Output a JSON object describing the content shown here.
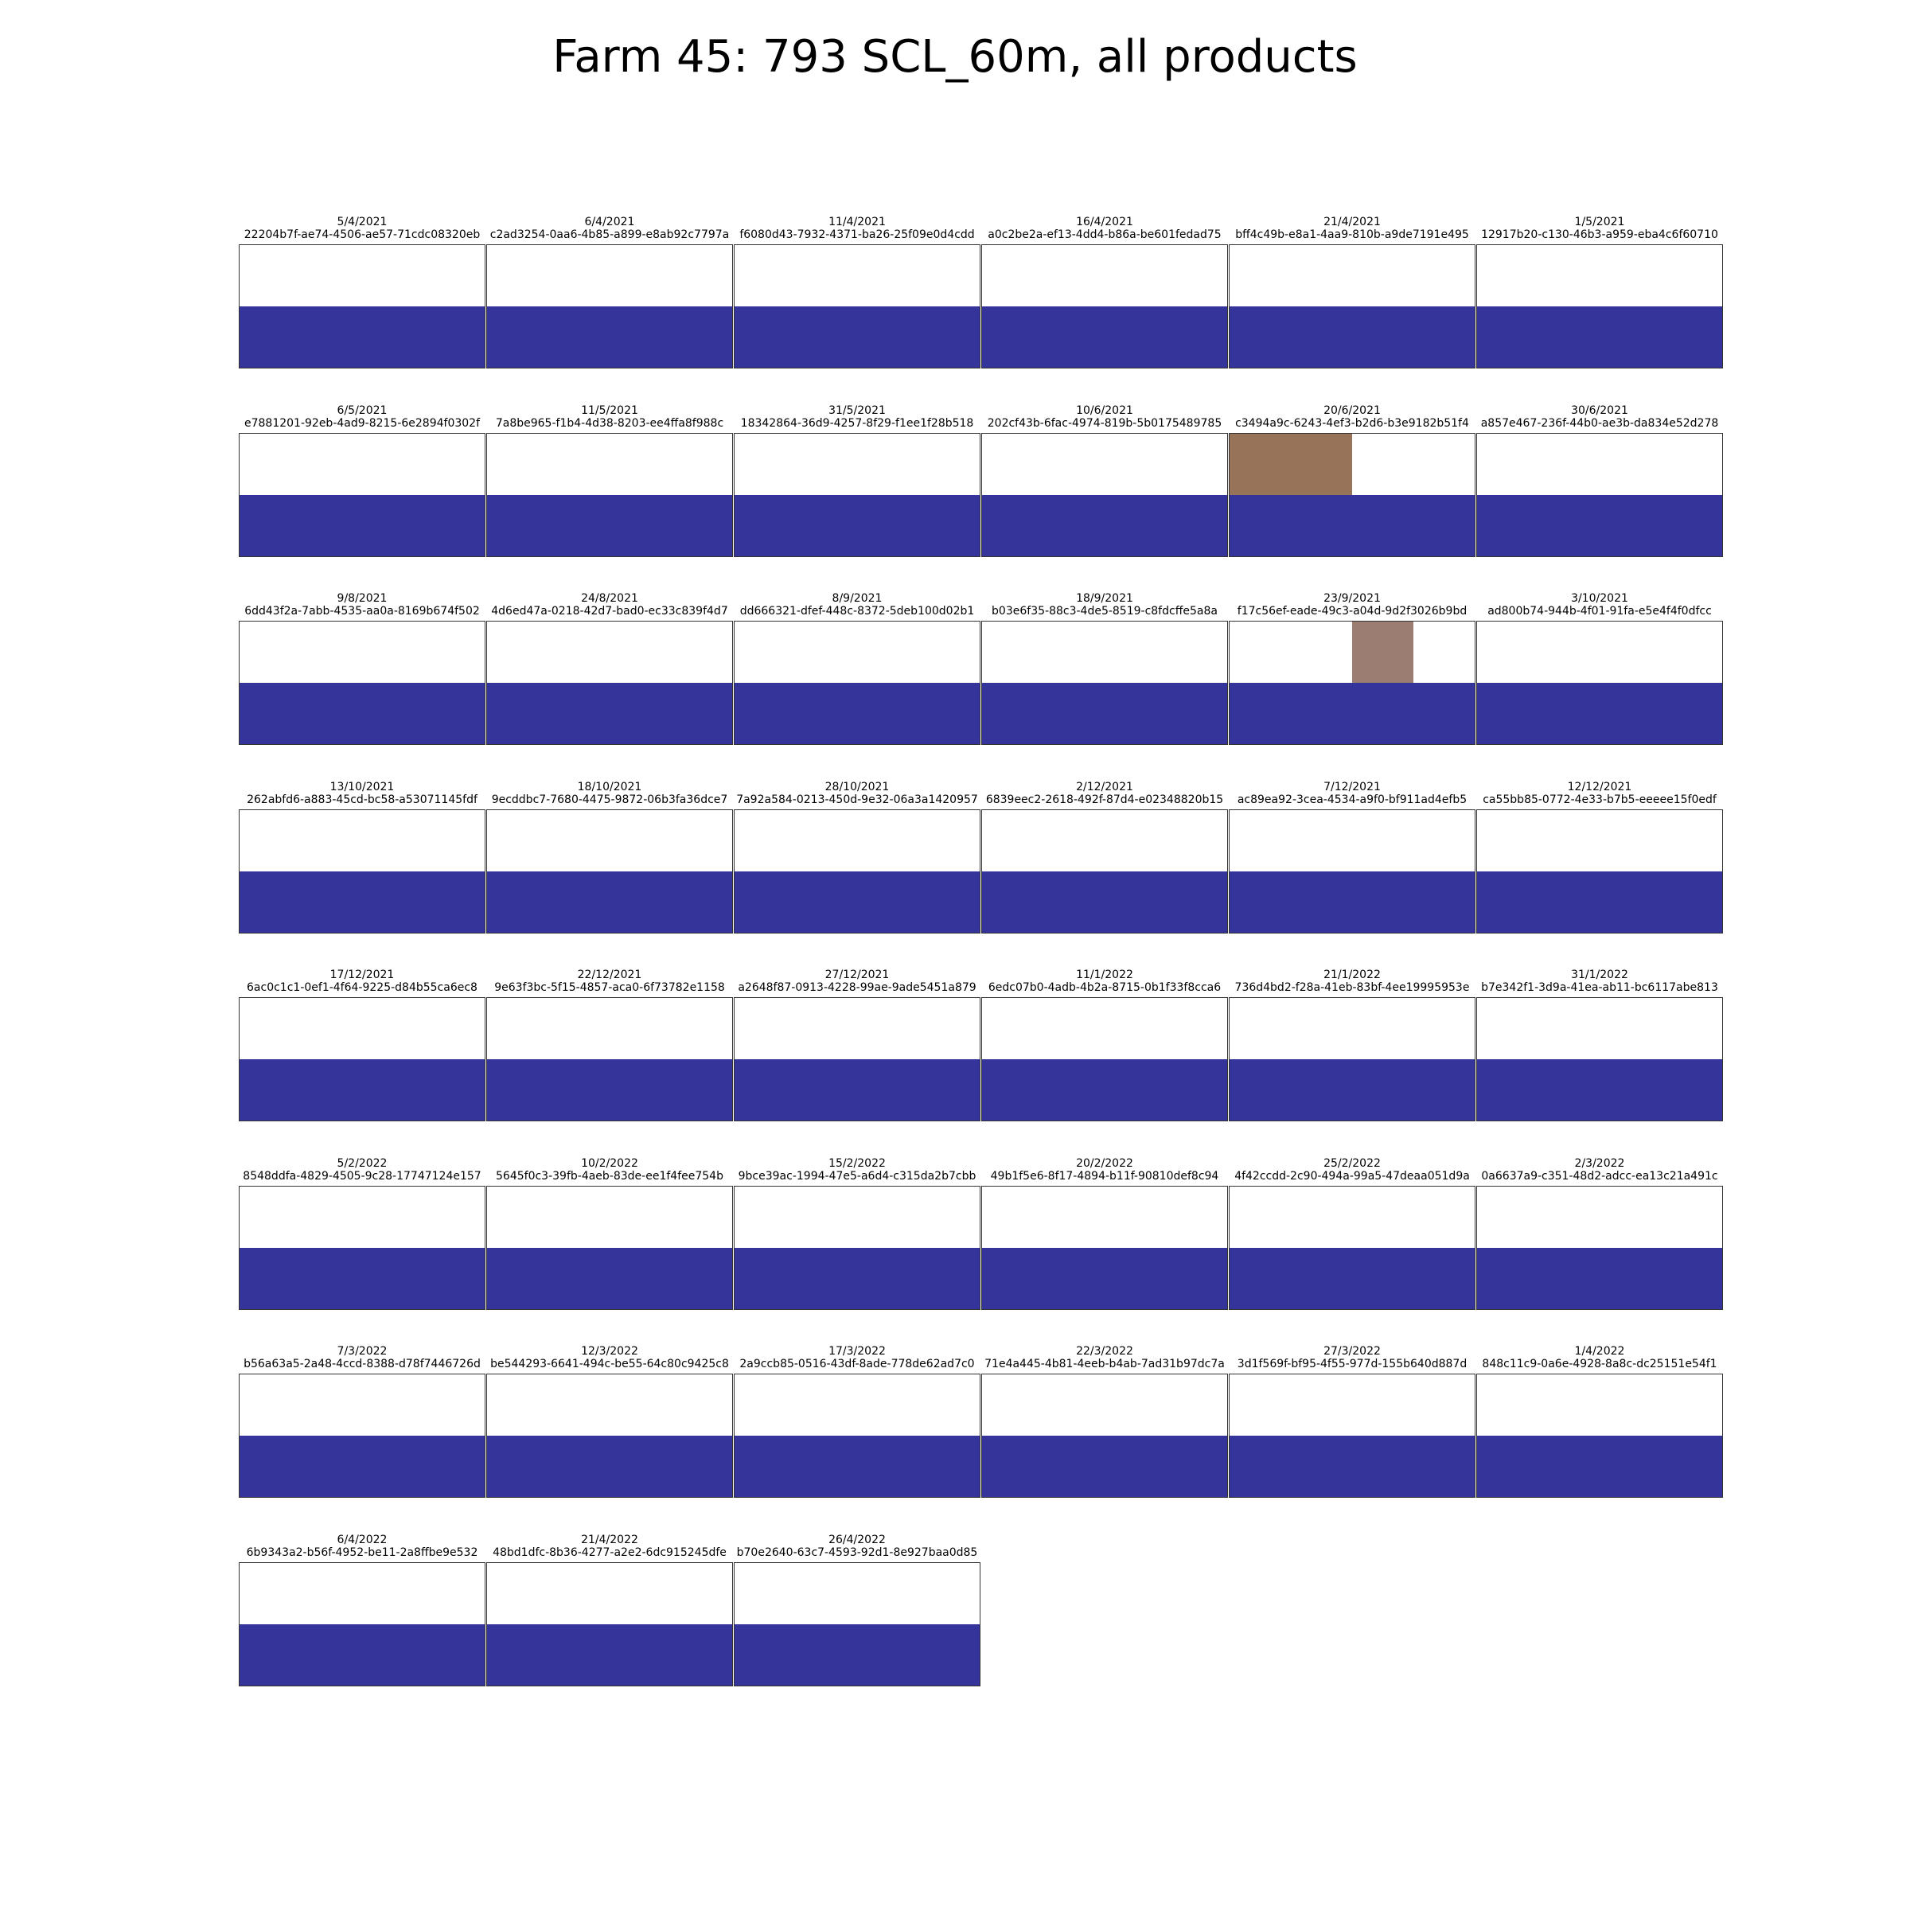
{
  "title": "Farm 45: 793 SCL_60m, all products",
  "colors": {
    "water": "#34349a",
    "bare_soil": "#967359",
    "cloud_shadow": "#9b7d72",
    "empty": "#ffffff",
    "border": "#333333"
  },
  "chart_data": {
    "type": "heatmap",
    "title": "Farm 45: 793 SCL_60m, all products",
    "grid": {
      "rows": 2,
      "cols": 2
    },
    "panels": [
      {
        "date": "5/4/2021",
        "id": "22204b7f-ae74-4506-ae57-71cdc08320eb",
        "cells": [
          "empty",
          "empty",
          "water",
          "water"
        ]
      },
      {
        "date": "6/4/2021",
        "id": "c2ad3254-0aa6-4b85-a899-e8ab92c7797a",
        "cells": [
          "empty",
          "empty",
          "water",
          "water"
        ]
      },
      {
        "date": "11/4/2021",
        "id": "f6080d43-7932-4371-ba26-25f09e0d4cdd",
        "cells": [
          "empty",
          "empty",
          "water",
          "water"
        ]
      },
      {
        "date": "16/4/2021",
        "id": "a0c2be2a-ef13-4dd4-b86a-be601fedad75",
        "cells": [
          "empty",
          "empty",
          "water",
          "water"
        ]
      },
      {
        "date": "21/4/2021",
        "id": "bff4c49b-e8a1-4aa9-810b-a9de7191e495",
        "cells": [
          "empty",
          "empty",
          "water",
          "water"
        ]
      },
      {
        "date": "1/5/2021",
        "id": "12917b20-c130-46b3-a959-eba4c6f60710",
        "cells": [
          "empty",
          "empty",
          "water",
          "water"
        ]
      },
      {
        "date": "6/5/2021",
        "id": "e7881201-92eb-4ad9-8215-6e2894f0302f",
        "cells": [
          "empty",
          "empty",
          "water",
          "water"
        ]
      },
      {
        "date": "11/5/2021",
        "id": "7a8be965-f1b4-4d38-8203-ee4ffa8f988c",
        "cells": [
          "empty",
          "empty",
          "water",
          "water"
        ]
      },
      {
        "date": "31/5/2021",
        "id": "18342864-36d9-4257-8f29-f1ee1f28b518",
        "cells": [
          "empty",
          "empty",
          "water",
          "water"
        ]
      },
      {
        "date": "10/6/2021",
        "id": "202cf43b-6fac-4974-819b-5b0175489785",
        "cells": [
          "empty",
          "empty",
          "water",
          "water"
        ]
      },
      {
        "date": "20/6/2021",
        "id": "c3494a9c-6243-4ef3-b2d6-b3e9182b51f4",
        "cells": [
          "bare_soil",
          "empty",
          "water",
          "water"
        ]
      },
      {
        "date": "30/6/2021",
        "id": "a857e467-236f-44b0-ae3b-da834e52d278",
        "cells": [
          "empty",
          "empty",
          "water",
          "water"
        ]
      },
      {
        "date": "9/8/2021",
        "id": "6dd43f2a-7abb-4535-aa0a-8169b674f502",
        "cells": [
          "empty",
          "empty",
          "water",
          "water"
        ]
      },
      {
        "date": "24/8/2021",
        "id": "4d6ed47a-0218-42d7-bad0-ec33c839f4d7",
        "cells": [
          "empty",
          "empty",
          "water",
          "water"
        ]
      },
      {
        "date": "8/9/2021",
        "id": "dd666321-dfef-448c-8372-5deb100d02b1",
        "cells": [
          "empty",
          "empty",
          "water",
          "water"
        ]
      },
      {
        "date": "18/9/2021",
        "id": "b03e6f35-88c3-4de5-8519-c8fdcffe5a8a",
        "cells": [
          "empty",
          "empty",
          "water",
          "water"
        ]
      },
      {
        "date": "23/9/2021",
        "id": "f17c56ef-eade-49c3-a04d-9d2f3026b9bd",
        "cells": [
          "empty",
          "cloud_shadow_half",
          "water",
          "water"
        ]
      },
      {
        "date": "3/10/2021",
        "id": "ad800b74-944b-4f01-91fa-e5e4f4f0dfcc",
        "cells": [
          "empty",
          "empty",
          "water",
          "water"
        ]
      },
      {
        "date": "13/10/2021",
        "id": "262abfd6-a883-45cd-bc58-a53071145fdf",
        "cells": [
          "empty",
          "empty",
          "water",
          "water"
        ]
      },
      {
        "date": "18/10/2021",
        "id": "9ecddbc7-7680-4475-9872-06b3fa36dce7",
        "cells": [
          "empty",
          "empty",
          "water",
          "water"
        ]
      },
      {
        "date": "28/10/2021",
        "id": "7a92a584-0213-450d-9e32-06a3a1420957",
        "cells": [
          "empty",
          "empty",
          "water",
          "water"
        ]
      },
      {
        "date": "2/12/2021",
        "id": "6839eec2-2618-492f-87d4-e02348820b15",
        "cells": [
          "empty",
          "empty",
          "water",
          "water"
        ]
      },
      {
        "date": "7/12/2021",
        "id": "ac89ea92-3cea-4534-a9f0-bf911ad4efb5",
        "cells": [
          "empty",
          "empty",
          "water",
          "water"
        ]
      },
      {
        "date": "12/12/2021",
        "id": "ca55bb85-0772-4e33-b7b5-eeeee15f0edf",
        "cells": [
          "empty",
          "empty",
          "water",
          "water"
        ]
      },
      {
        "date": "17/12/2021",
        "id": "6ac0c1c1-0ef1-4f64-9225-d84b55ca6ec8",
        "cells": [
          "empty",
          "empty",
          "water",
          "water"
        ]
      },
      {
        "date": "22/12/2021",
        "id": "9e63f3bc-5f15-4857-aca0-6f73782e1158",
        "cells": [
          "empty",
          "empty",
          "water",
          "water"
        ]
      },
      {
        "date": "27/12/2021",
        "id": "a2648f87-0913-4228-99ae-9ade5451a879",
        "cells": [
          "empty",
          "empty",
          "water",
          "water"
        ]
      },
      {
        "date": "11/1/2022",
        "id": "6edc07b0-4adb-4b2a-8715-0b1f33f8cca6",
        "cells": [
          "empty",
          "empty",
          "water",
          "water"
        ]
      },
      {
        "date": "21/1/2022",
        "id": "736d4bd2-f28a-41eb-83bf-4ee19995953e",
        "cells": [
          "empty",
          "empty",
          "water",
          "water"
        ]
      },
      {
        "date": "31/1/2022",
        "id": "b7e342f1-3d9a-41ea-ab11-bc6117abe813",
        "cells": [
          "empty",
          "empty",
          "water",
          "water"
        ]
      },
      {
        "date": "5/2/2022",
        "id": "8548ddfa-4829-4505-9c28-17747124e157",
        "cells": [
          "empty",
          "empty",
          "water",
          "water"
        ]
      },
      {
        "date": "10/2/2022",
        "id": "5645f0c3-39fb-4aeb-83de-ee1f4fee754b",
        "cells": [
          "empty",
          "empty",
          "water",
          "water"
        ]
      },
      {
        "date": "15/2/2022",
        "id": "9bce39ac-1994-47e5-a6d4-c315da2b7cbb",
        "cells": [
          "empty",
          "empty",
          "water",
          "water"
        ]
      },
      {
        "date": "20/2/2022",
        "id": "49b1f5e6-8f17-4894-b11f-90810def8c94",
        "cells": [
          "empty",
          "empty",
          "water",
          "water"
        ]
      },
      {
        "date": "25/2/2022",
        "id": "4f42ccdd-2c90-494a-99a5-47deaa051d9a",
        "cells": [
          "empty",
          "empty",
          "water",
          "water"
        ]
      },
      {
        "date": "2/3/2022",
        "id": "0a6637a9-c351-48d2-adcc-ea13c21a491c",
        "cells": [
          "empty",
          "empty",
          "water",
          "water"
        ]
      },
      {
        "date": "7/3/2022",
        "id": "b56a63a5-2a48-4ccd-8388-d78f7446726d",
        "cells": [
          "empty",
          "empty",
          "water",
          "water"
        ]
      },
      {
        "date": "12/3/2022",
        "id": "be544293-6641-494c-be55-64c80c9425c8",
        "cells": [
          "empty",
          "empty",
          "water",
          "water"
        ]
      },
      {
        "date": "17/3/2022",
        "id": "2a9ccb85-0516-43df-8ade-778de62ad7c0",
        "cells": [
          "empty",
          "empty",
          "water",
          "water"
        ]
      },
      {
        "date": "22/3/2022",
        "id": "71e4a445-4b81-4eeb-b4ab-7ad31b97dc7a",
        "cells": [
          "empty",
          "empty",
          "water",
          "water"
        ]
      },
      {
        "date": "27/3/2022",
        "id": "3d1f569f-bf95-4f55-977d-155b640d887d",
        "cells": [
          "empty",
          "empty",
          "water",
          "water"
        ]
      },
      {
        "date": "1/4/2022",
        "id": "848c11c9-0a6e-4928-8a8c-dc25151e54f1",
        "cells": [
          "empty",
          "empty",
          "water",
          "water"
        ]
      },
      {
        "date": "6/4/2022",
        "id": "6b9343a2-b56f-4952-be11-2a8ffbe9e532",
        "cells": [
          "empty",
          "empty",
          "water",
          "water"
        ]
      },
      {
        "date": "21/4/2022",
        "id": "48bd1dfc-8b36-4277-a2e2-6dc915245dfe",
        "cells": [
          "empty",
          "empty",
          "water",
          "water"
        ]
      },
      {
        "date": "26/4/2022",
        "id": "b70e2640-63c7-4593-92d1-8e927baa0d85",
        "cells": [
          "empty",
          "empty",
          "water",
          "water"
        ]
      }
    ]
  }
}
